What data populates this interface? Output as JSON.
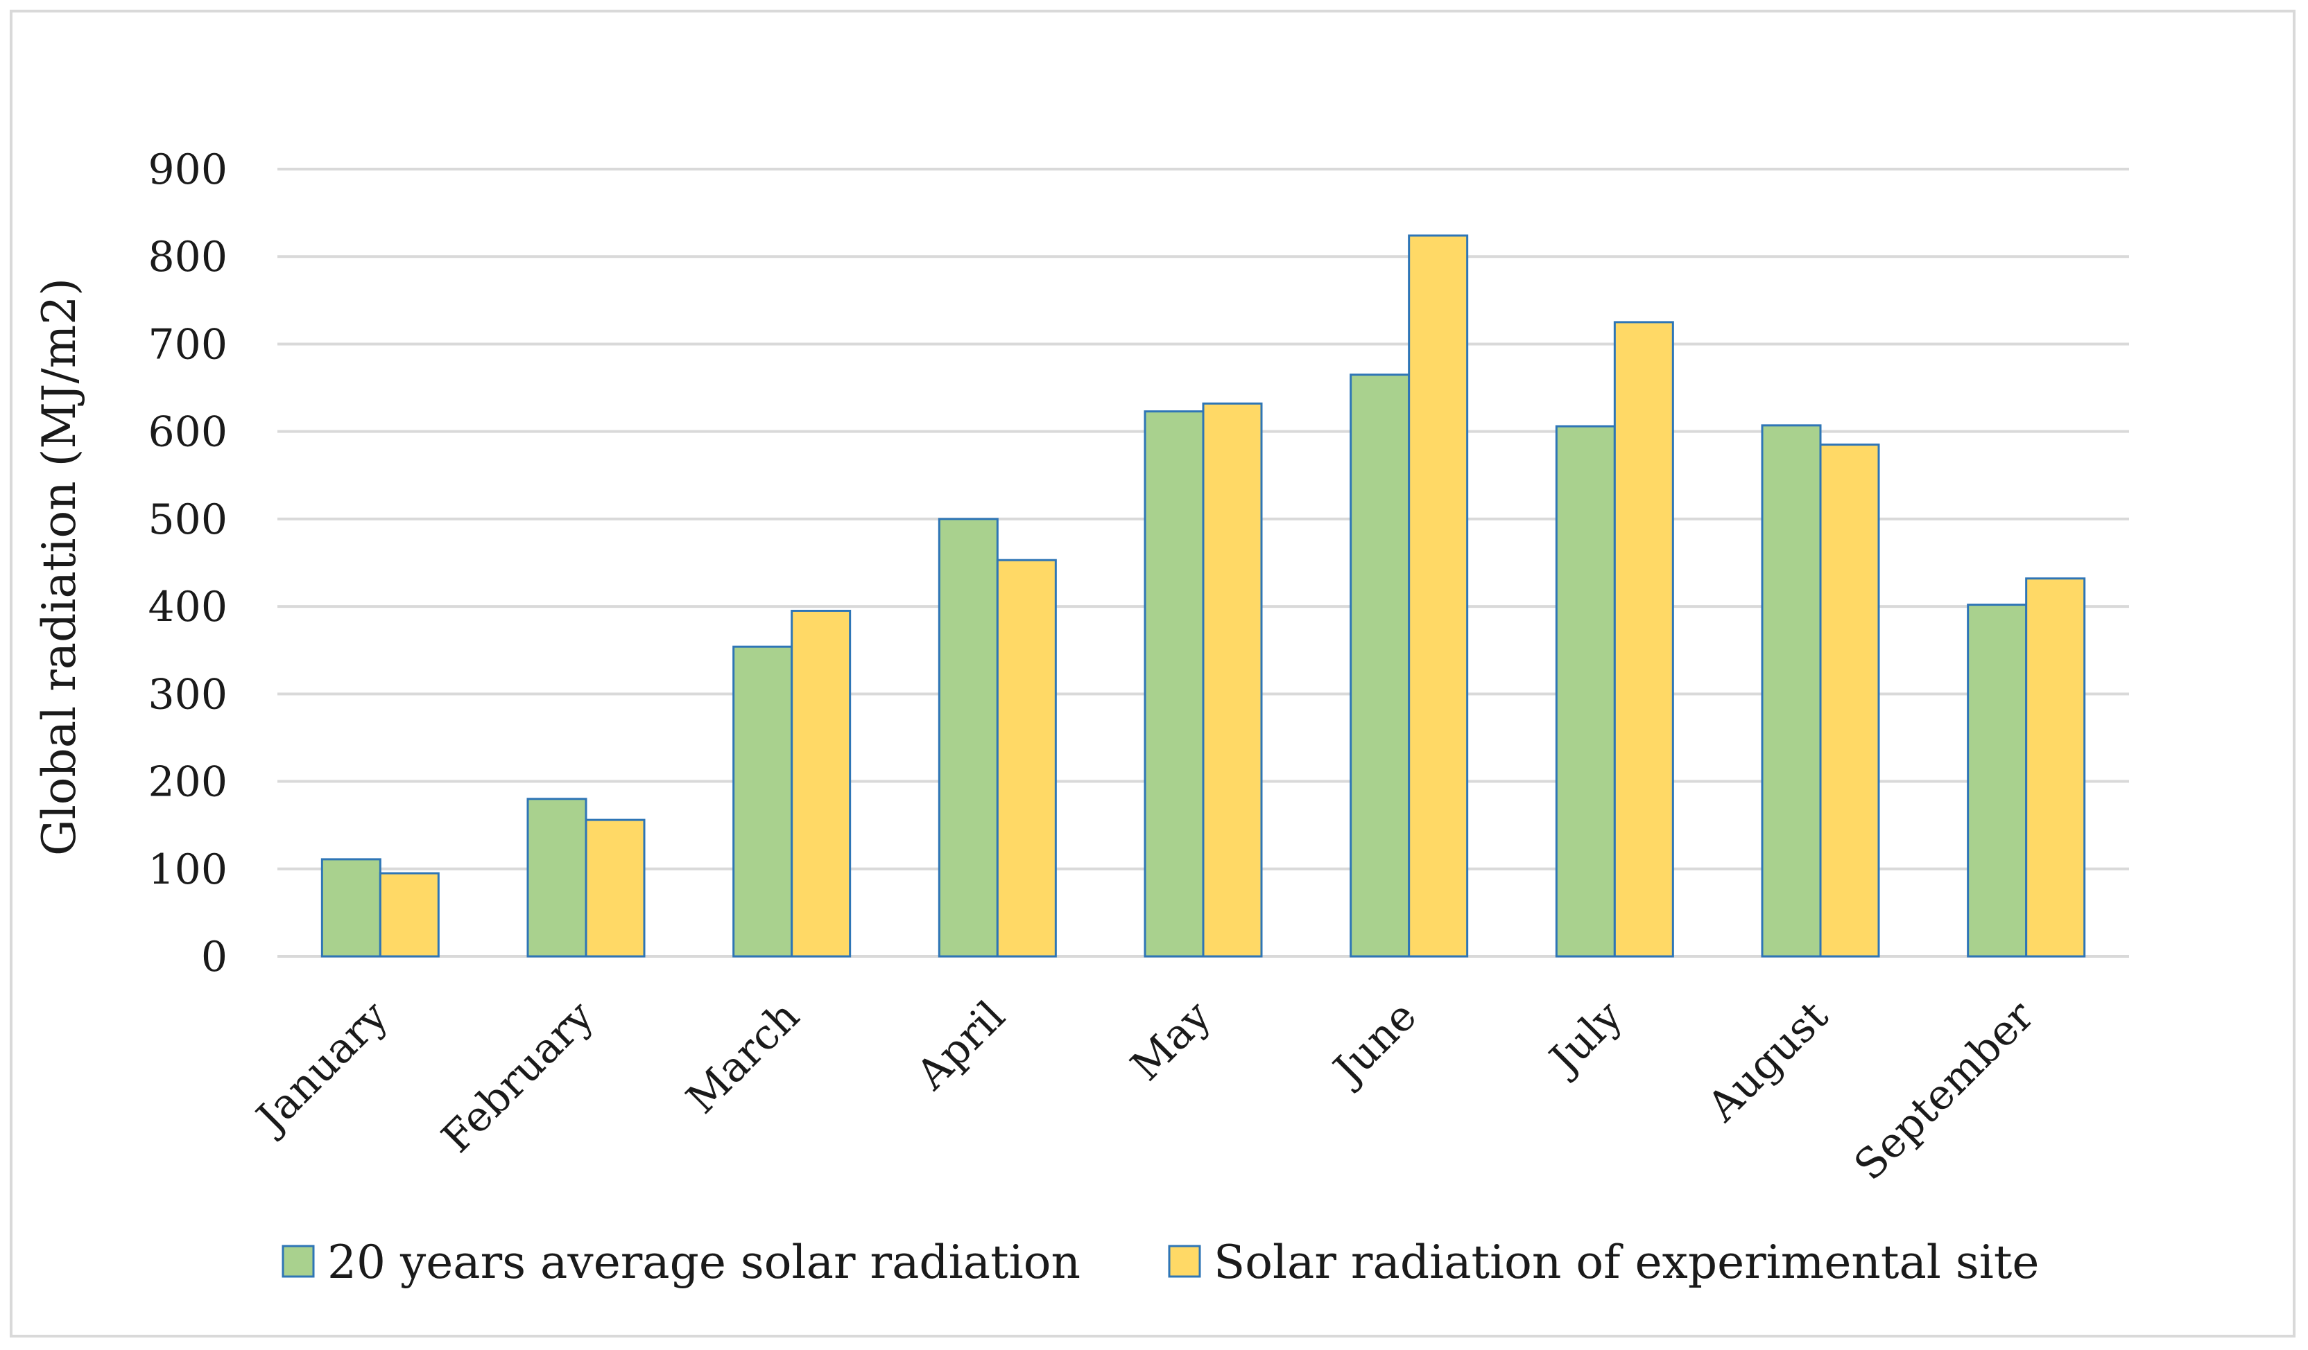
{
  "chart_data": {
    "type": "bar",
    "title": "",
    "xlabel": "",
    "ylabel": "Global radiation  (MJ/m2)",
    "ylim": [
      0,
      900
    ],
    "yticks": [
      0,
      100,
      200,
      300,
      400,
      500,
      600,
      700,
      800,
      900
    ],
    "grid": true,
    "legend_position": "bottom",
    "categories": [
      "January",
      "February",
      "March",
      "April",
      "May",
      "June",
      "July",
      "August",
      "September"
    ],
    "series": [
      {
        "name": "20 years average solar radiation",
        "color": "#a9d18e",
        "values": [
          111,
          180,
          354,
          500,
          623,
          665,
          606,
          607,
          402
        ]
      },
      {
        "name": "Solar radiation of experimental site",
        "color": "#ffd966",
        "values": [
          95,
          156,
          395,
          453,
          632,
          824,
          725,
          585,
          432
        ]
      }
    ],
    "bar_border_color": "#2e75b6",
    "gridline_color": "#d9d9d9"
  }
}
